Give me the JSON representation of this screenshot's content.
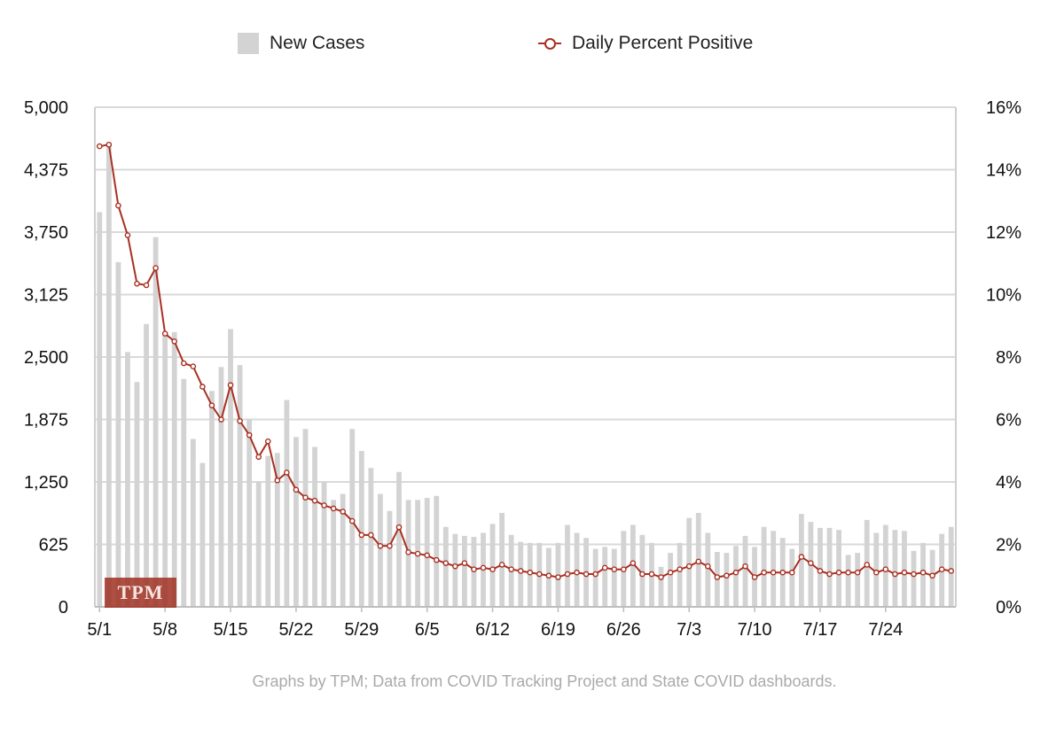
{
  "legend": {
    "cases_label": "New Cases",
    "positive_label": "Daily Percent Positive"
  },
  "watermark": "TPM",
  "footer": "Graphs by TPM; Data from COVID Tracking Project and State COVID dashboards.",
  "colors": {
    "bar": "#d3d3d3",
    "line": "#a83022",
    "grid": "#d9d9d9"
  },
  "chart_data": {
    "type": "bar",
    "series": [
      {
        "name": "New Cases",
        "type": "bar",
        "axis": "left",
        "values": [
          3950,
          4650,
          3450,
          2550,
          2250,
          2830,
          3700,
          2720,
          2750,
          2280,
          1680,
          1440,
          2160,
          2400,
          2780,
          2420,
          1880,
          1250,
          1510,
          1540,
          2070,
          1700,
          1780,
          1600,
          1250,
          1070,
          1130,
          1780,
          1560,
          1390,
          1130,
          960,
          1350,
          1070,
          1070,
          1090,
          1110,
          800,
          730,
          710,
          700,
          740,
          830,
          940,
          720,
          650,
          640,
          640,
          590,
          640,
          820,
          740,
          690,
          580,
          600,
          580,
          760,
          820,
          720,
          640,
          400,
          540,
          640,
          890,
          940,
          740,
          550,
          540,
          610,
          710,
          600,
          800,
          760,
          690,
          580,
          930,
          850,
          790,
          790,
          770,
          520,
          540,
          870,
          740,
          820,
          770,
          760,
          560,
          640,
          570,
          730,
          800
        ]
      },
      {
        "name": "Daily Percent Positive",
        "type": "line",
        "axis": "right",
        "values": [
          14.75,
          14.8,
          12.85,
          11.9,
          10.35,
          10.3,
          10.85,
          8.75,
          8.5,
          7.8,
          7.7,
          7.05,
          6.45,
          6.0,
          7.1,
          5.95,
          5.5,
          4.8,
          5.3,
          4.05,
          4.3,
          3.75,
          3.5,
          3.4,
          3.25,
          3.15,
          3.05,
          2.75,
          2.3,
          2.3,
          1.95,
          1.95,
          2.55,
          1.75,
          1.7,
          1.65,
          1.5,
          1.4,
          1.3,
          1.4,
          1.2,
          1.25,
          1.2,
          1.35,
          1.2,
          1.15,
          1.1,
          1.05,
          1.0,
          0.95,
          1.05,
          1.1,
          1.05,
          1.05,
          1.25,
          1.2,
          1.2,
          1.4,
          1.05,
          1.05,
          0.95,
          1.1,
          1.2,
          1.3,
          1.45,
          1.3,
          0.95,
          1.0,
          1.1,
          1.3,
          0.95,
          1.1,
          1.1,
          1.1,
          1.1,
          1.6,
          1.4,
          1.15,
          1.05,
          1.1,
          1.1,
          1.1,
          1.35,
          1.1,
          1.2,
          1.05,
          1.1,
          1.05,
          1.1,
          1.0,
          1.2,
          1.15
        ]
      }
    ],
    "x_labels": [
      "5/1",
      "5/8",
      "5/15",
      "5/22",
      "5/29",
      "6/5",
      "6/12",
      "6/19",
      "6/26",
      "7/3",
      "7/10",
      "7/17",
      "7/24"
    ],
    "y_left": {
      "min": 0,
      "max": 5000,
      "ticks": [
        "0",
        "625",
        "1,250",
        "1,875",
        "2,500",
        "3,125",
        "3,750",
        "4,375",
        "5,000"
      ]
    },
    "y_right": {
      "min": 0,
      "max": 16,
      "unit": "%",
      "ticks": [
        "0%",
        "2%",
        "4%",
        "6%",
        "8%",
        "10%",
        "12%",
        "14%",
        "16%"
      ]
    },
    "grid": true,
    "legend_position": "top"
  }
}
